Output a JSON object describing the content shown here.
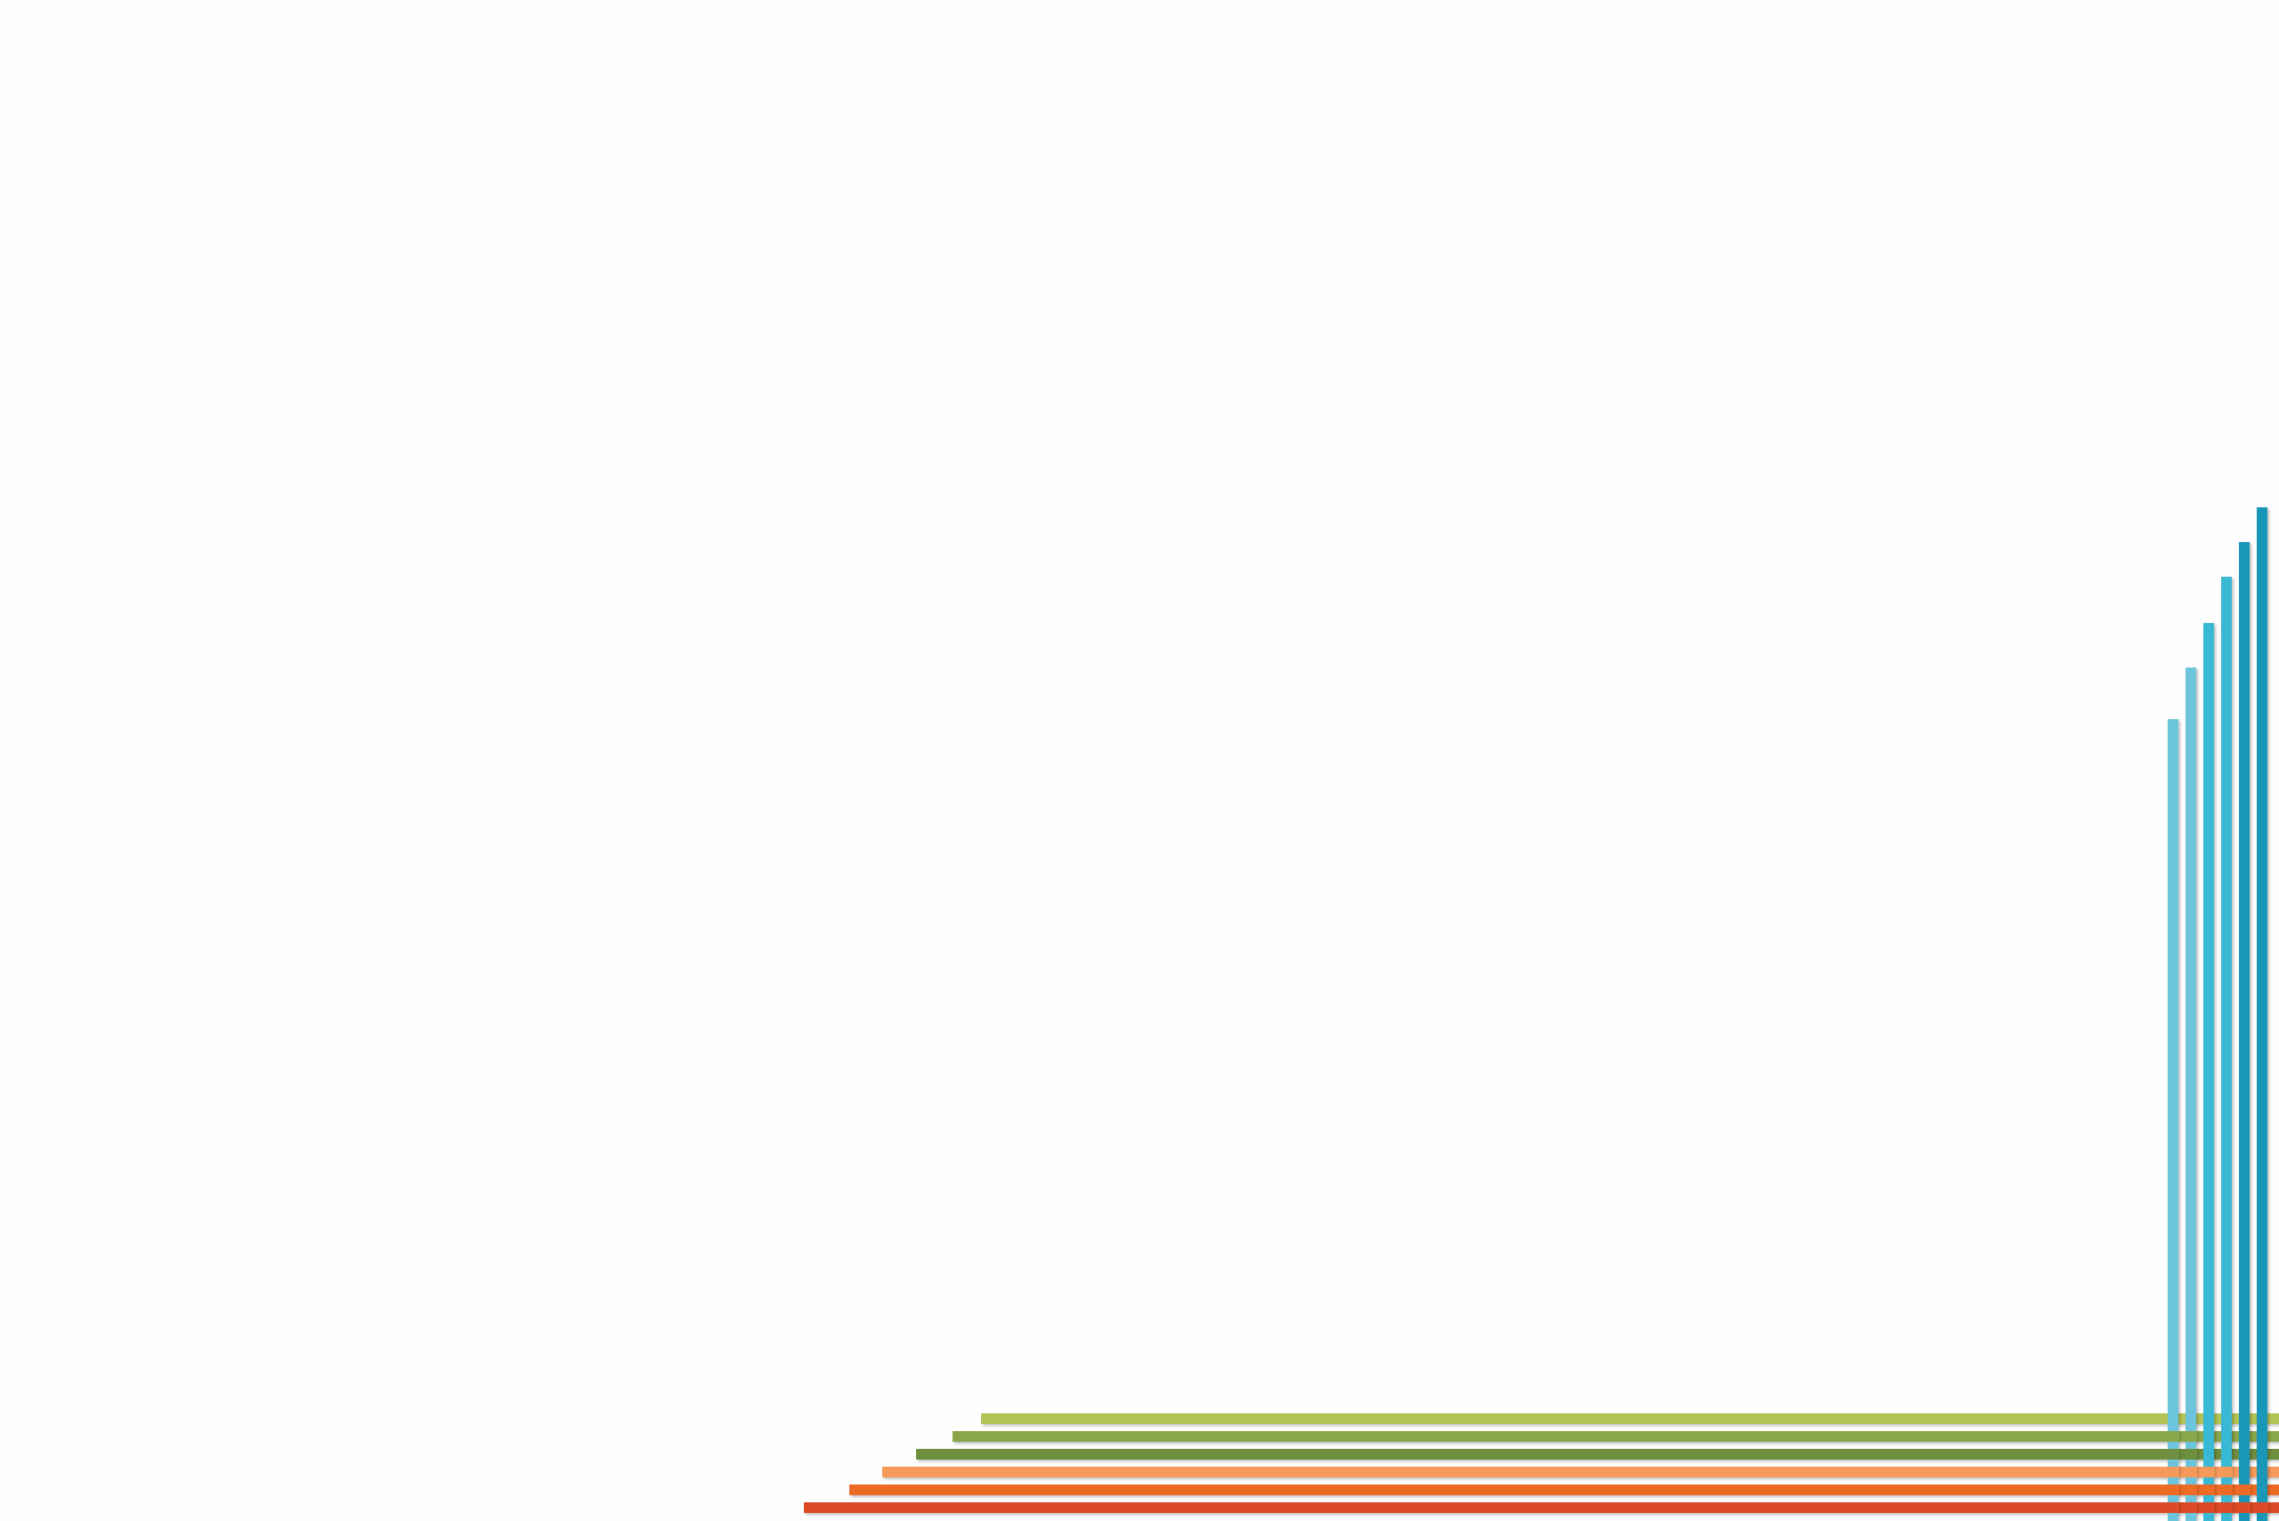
{
  "artwork": {
    "vertical_strip_colors": [
      "#6cc5dc",
      "#6cc5dc",
      "#39b9d3",
      "#39b9d3",
      "#1a97b8",
      "#1a97b8"
    ],
    "horizontal_strip_colors": [
      "#b5c456",
      "#8aa64a",
      "#6e8f3f",
      "#f59a5a",
      "#ee6b25",
      "#dd4a25"
    ],
    "background": "#fefefe"
  }
}
